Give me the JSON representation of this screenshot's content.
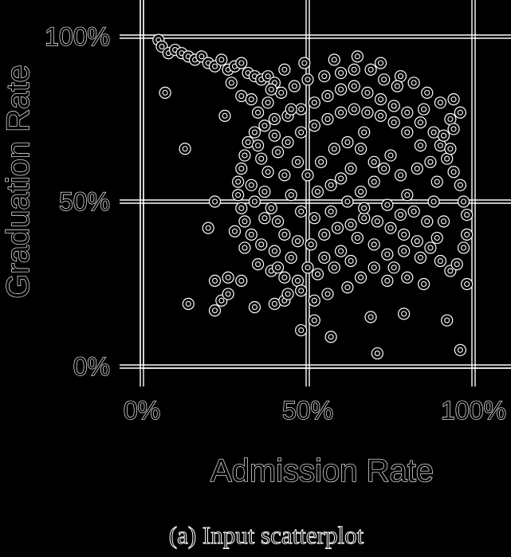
{
  "chart_data": {
    "type": "scatter",
    "xlabel": "Admission Rate",
    "ylabel": "Graduation Rate",
    "xlim": [
      0,
      100
    ],
    "ylim": [
      0,
      100
    ],
    "x_ticks": [
      "0%",
      "50%",
      "100%"
    ],
    "y_ticks": [
      "0%",
      "50%",
      "100%"
    ],
    "grid": true,
    "caption": "(a) Input scatterplot",
    "outline_colors": {
      "background": "#000000",
      "stroke": "#ffffff"
    },
    "points": [
      {
        "x": 5,
        "y": 99
      },
      {
        "x": 6,
        "y": 97
      },
      {
        "x": 8,
        "y": 95
      },
      {
        "x": 10,
        "y": 96
      },
      {
        "x": 12,
        "y": 95
      },
      {
        "x": 14,
        "y": 94
      },
      {
        "x": 16,
        "y": 93
      },
      {
        "x": 18,
        "y": 94
      },
      {
        "x": 20,
        "y": 92
      },
      {
        "x": 22,
        "y": 91
      },
      {
        "x": 24,
        "y": 93
      },
      {
        "x": 26,
        "y": 90
      },
      {
        "x": 28,
        "y": 91
      },
      {
        "x": 30,
        "y": 92
      },
      {
        "x": 32,
        "y": 89
      },
      {
        "x": 34,
        "y": 88
      },
      {
        "x": 36,
        "y": 87
      },
      {
        "x": 38,
        "y": 88
      },
      {
        "x": 40,
        "y": 86
      },
      {
        "x": 27,
        "y": 86
      },
      {
        "x": 30,
        "y": 82
      },
      {
        "x": 33,
        "y": 81
      },
      {
        "x": 7,
        "y": 83
      },
      {
        "x": 13,
        "y": 66
      },
      {
        "x": 25,
        "y": 76
      },
      {
        "x": 22,
        "y": 50
      },
      {
        "x": 20,
        "y": 42
      },
      {
        "x": 14,
        "y": 19
      },
      {
        "x": 22,
        "y": 17
      },
      {
        "x": 24,
        "y": 20
      },
      {
        "x": 26,
        "y": 22
      },
      {
        "x": 22,
        "y": 26
      },
      {
        "x": 26,
        "y": 27
      },
      {
        "x": 30,
        "y": 26
      },
      {
        "x": 28,
        "y": 41
      },
      {
        "x": 34,
        "y": 18
      },
      {
        "x": 40,
        "y": 19
      },
      {
        "x": 43,
        "y": 20
      },
      {
        "x": 44,
        "y": 22
      },
      {
        "x": 48,
        "y": 11
      },
      {
        "x": 52,
        "y": 14
      },
      {
        "x": 57,
        "y": 9
      },
      {
        "x": 71,
        "y": 4
      },
      {
        "x": 69,
        "y": 15
      },
      {
        "x": 79,
        "y": 16
      },
      {
        "x": 92,
        "y": 14
      },
      {
        "x": 96,
        "y": 5
      },
      {
        "x": 98,
        "y": 25
      },
      {
        "x": 93,
        "y": 29
      },
      {
        "x": 90,
        "y": 32
      },
      {
        "x": 85,
        "y": 25
      },
      {
        "x": 80,
        "y": 27
      },
      {
        "x": 76,
        "y": 30
      },
      {
        "x": 74,
        "y": 34
      },
      {
        "x": 70,
        "y": 37
      },
      {
        "x": 65,
        "y": 39
      },
      {
        "x": 60,
        "y": 35
      },
      {
        "x": 55,
        "y": 33
      },
      {
        "x": 50,
        "y": 30
      },
      {
        "x": 45,
        "y": 33
      },
      {
        "x": 40,
        "y": 35
      },
      {
        "x": 36,
        "y": 37
      },
      {
        "x": 33,
        "y": 40
      },
      {
        "x": 31,
        "y": 44
      },
      {
        "x": 30,
        "y": 48
      },
      {
        "x": 29,
        "y": 52
      },
      {
        "x": 29,
        "y": 56
      },
      {
        "x": 30,
        "y": 60
      },
      {
        "x": 31,
        "y": 64
      },
      {
        "x": 32,
        "y": 68
      },
      {
        "x": 34,
        "y": 71
      },
      {
        "x": 37,
        "y": 73
      },
      {
        "x": 40,
        "y": 75
      },
      {
        "x": 44,
        "y": 76
      },
      {
        "x": 48,
        "y": 78
      },
      {
        "x": 52,
        "y": 80
      },
      {
        "x": 56,
        "y": 82
      },
      {
        "x": 60,
        "y": 84
      },
      {
        "x": 64,
        "y": 85
      },
      {
        "x": 68,
        "y": 83
      },
      {
        "x": 72,
        "y": 81
      },
      {
        "x": 76,
        "y": 79
      },
      {
        "x": 80,
        "y": 77
      },
      {
        "x": 84,
        "y": 74
      },
      {
        "x": 88,
        "y": 71
      },
      {
        "x": 90,
        "y": 67
      },
      {
        "x": 92,
        "y": 63
      },
      {
        "x": 94,
        "y": 59
      },
      {
        "x": 96,
        "y": 55
      },
      {
        "x": 97,
        "y": 50
      },
      {
        "x": 98,
        "y": 46
      },
      {
        "x": 98,
        "y": 40
      },
      {
        "x": 97,
        "y": 36
      },
      {
        "x": 95,
        "y": 31
      },
      {
        "x": 93,
        "y": 75
      },
      {
        "x": 94,
        "y": 72
      },
      {
        "x": 96,
        "y": 77
      },
      {
        "x": 94,
        "y": 81
      },
      {
        "x": 90,
        "y": 80
      },
      {
        "x": 86,
        "y": 83
      },
      {
        "x": 82,
        "y": 86
      },
      {
        "x": 78,
        "y": 88
      },
      {
        "x": 73,
        "y": 87
      },
      {
        "x": 69,
        "y": 90
      },
      {
        "x": 64,
        "y": 90
      },
      {
        "x": 60,
        "y": 89
      },
      {
        "x": 55,
        "y": 88
      },
      {
        "x": 50,
        "y": 87
      },
      {
        "x": 46,
        "y": 85
      },
      {
        "x": 42,
        "y": 83
      },
      {
        "x": 38,
        "y": 80
      },
      {
        "x": 35,
        "y": 77
      },
      {
        "x": 36,
        "y": 63
      },
      {
        "x": 38,
        "y": 59
      },
      {
        "x": 37,
        "y": 53
      },
      {
        "x": 39,
        "y": 48
      },
      {
        "x": 41,
        "y": 44
      },
      {
        "x": 43,
        "y": 40
      },
      {
        "x": 47,
        "y": 38
      },
      {
        "x": 51,
        "y": 37
      },
      {
        "x": 55,
        "y": 40
      },
      {
        "x": 59,
        "y": 42
      },
      {
        "x": 63,
        "y": 43
      },
      {
        "x": 67,
        "y": 45
      },
      {
        "x": 71,
        "y": 44
      },
      {
        "x": 75,
        "y": 42
      },
      {
        "x": 79,
        "y": 40
      },
      {
        "x": 83,
        "y": 38
      },
      {
        "x": 87,
        "y": 36
      },
      {
        "x": 86,
        "y": 44
      },
      {
        "x": 88,
        "y": 50
      },
      {
        "x": 89,
        "y": 56
      },
      {
        "x": 87,
        "y": 62
      },
      {
        "x": 84,
        "y": 67
      },
      {
        "x": 80,
        "y": 71
      },
      {
        "x": 76,
        "y": 74
      },
      {
        "x": 72,
        "y": 76
      },
      {
        "x": 68,
        "y": 77
      },
      {
        "x": 64,
        "y": 78
      },
      {
        "x": 60,
        "y": 77
      },
      {
        "x": 56,
        "y": 75
      },
      {
        "x": 52,
        "y": 73
      },
      {
        "x": 48,
        "y": 71
      },
      {
        "x": 44,
        "y": 68
      },
      {
        "x": 41,
        "y": 65
      },
      {
        "x": 40,
        "y": 70
      },
      {
        "x": 43,
        "y": 58
      },
      {
        "x": 45,
        "y": 52
      },
      {
        "x": 48,
        "y": 47
      },
      {
        "x": 52,
        "y": 45
      },
      {
        "x": 57,
        "y": 47
      },
      {
        "x": 62,
        "y": 50
      },
      {
        "x": 66,
        "y": 53
      },
      {
        "x": 70,
        "y": 56
      },
      {
        "x": 73,
        "y": 60
      },
      {
        "x": 75,
        "y": 64
      },
      {
        "x": 78,
        "y": 58
      },
      {
        "x": 80,
        "y": 52
      },
      {
        "x": 82,
        "y": 47
      },
      {
        "x": 78,
        "y": 46
      },
      {
        "x": 74,
        "y": 49
      },
      {
        "x": 70,
        "y": 62
      },
      {
        "x": 66,
        "y": 66
      },
      {
        "x": 62,
        "y": 68
      },
      {
        "x": 58,
        "y": 66
      },
      {
        "x": 54,
        "y": 62
      },
      {
        "x": 50,
        "y": 58
      },
      {
        "x": 47,
        "y": 62
      },
      {
        "x": 53,
        "y": 53
      },
      {
        "x": 60,
        "y": 57
      },
      {
        "x": 67,
        "y": 71
      },
      {
        "x": 63,
        "y": 60
      },
      {
        "x": 57,
        "y": 55
      },
      {
        "x": 67,
        "y": 48
      },
      {
        "x": 83,
        "y": 60
      },
      {
        "x": 45,
        "y": 78
      },
      {
        "x": 33,
        "y": 55
      },
      {
        "x": 31,
        "y": 36
      },
      {
        "x": 35,
        "y": 31
      },
      {
        "x": 39,
        "y": 29
      },
      {
        "x": 43,
        "y": 27
      },
      {
        "x": 47,
        "y": 26
      },
      {
        "x": 53,
        "y": 28
      },
      {
        "x": 58,
        "y": 30
      },
      {
        "x": 63,
        "y": 32
      },
      {
        "x": 66,
        "y": 27
      },
      {
        "x": 70,
        "y": 30
      },
      {
        "x": 74,
        "y": 26
      },
      {
        "x": 62,
        "y": 24
      },
      {
        "x": 56,
        "y": 22
      },
      {
        "x": 52,
        "y": 20
      },
      {
        "x": 48,
        "y": 23
      },
      {
        "x": 41,
        "y": 30
      },
      {
        "x": 37,
        "y": 45
      },
      {
        "x": 34,
        "y": 50
      },
      {
        "x": 35,
        "y": 67
      },
      {
        "x": 39,
        "y": 84
      },
      {
        "x": 43,
        "y": 90
      },
      {
        "x": 49,
        "y": 92
      },
      {
        "x": 58,
        "y": 93
      },
      {
        "x": 65,
        "y": 94
      },
      {
        "x": 72,
        "y": 92
      },
      {
        "x": 77,
        "y": 85
      },
      {
        "x": 85,
        "y": 78
      },
      {
        "x": 91,
        "y": 70
      },
      {
        "x": 93,
        "y": 66
      },
      {
        "x": 91,
        "y": 44
      },
      {
        "x": 89,
        "y": 39
      },
      {
        "x": 84,
        "y": 33
      },
      {
        "x": 79,
        "y": 35
      }
    ]
  }
}
